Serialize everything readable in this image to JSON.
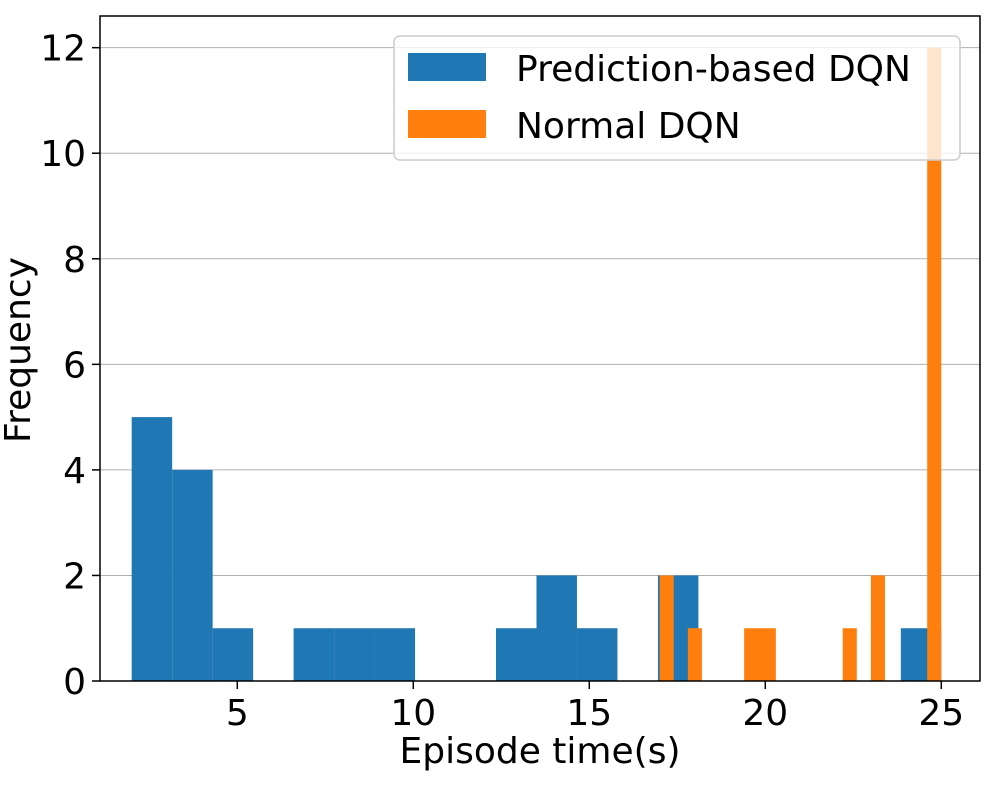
{
  "chart_data": {
    "type": "bar",
    "title": "",
    "xlabel": "Episode time(s)",
    "ylabel": "Frequency",
    "xlim": [
      1.1,
      26.1
    ],
    "ylim": [
      0,
      12.6
    ],
    "xticks": [
      "5",
      "10",
      "15",
      "20",
      "25"
    ],
    "yticks": [
      "0",
      "2",
      "4",
      "6",
      "8",
      "10",
      "12"
    ],
    "grid": "y",
    "legend_position": "top-right",
    "series": [
      {
        "name": "Prediction-based DQN",
        "color": "#1f77b4",
        "bins": [
          {
            "x0": 2.0,
            "x1": 3.15,
            "count": 5
          },
          {
            "x0": 3.15,
            "x1": 4.3,
            "count": 4
          },
          {
            "x0": 4.3,
            "x1": 5.45,
            "count": 1
          },
          {
            "x0": 6.6,
            "x1": 7.75,
            "count": 1
          },
          {
            "x0": 7.75,
            "x1": 8.9,
            "count": 1
          },
          {
            "x0": 8.9,
            "x1": 10.05,
            "count": 1
          },
          {
            "x0": 12.35,
            "x1": 13.5,
            "count": 1
          },
          {
            "x0": 13.5,
            "x1": 14.65,
            "count": 2
          },
          {
            "x0": 14.65,
            "x1": 15.8,
            "count": 1
          },
          {
            "x0": 16.95,
            "x1": 18.1,
            "count": 2
          },
          {
            "x0": 23.85,
            "x1": 25.0,
            "count": 1
          }
        ]
      },
      {
        "name": "Normal DQN",
        "color": "#ff7f0e",
        "bins": [
          {
            "x0": 17.0,
            "x1": 17.4,
            "count": 2
          },
          {
            "x0": 17.8,
            "x1": 18.2,
            "count": 1
          },
          {
            "x0": 19.4,
            "x1": 20.3,
            "count": 1
          },
          {
            "x0": 22.2,
            "x1": 22.6,
            "count": 1
          },
          {
            "x0": 23.0,
            "x1": 23.4,
            "count": 2
          },
          {
            "x0": 24.6,
            "x1": 25.0,
            "count": 12
          }
        ]
      }
    ]
  }
}
